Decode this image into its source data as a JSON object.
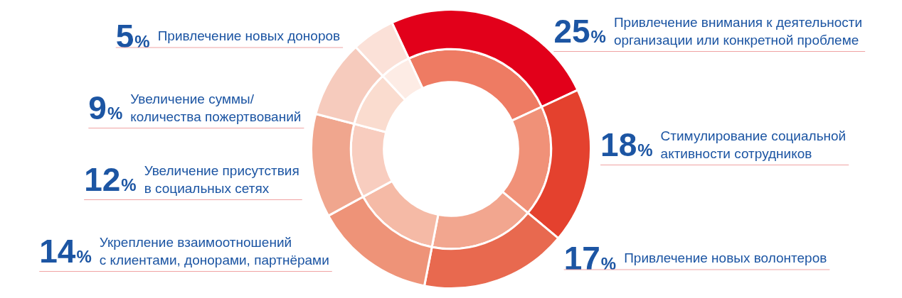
{
  "chart_data": {
    "type": "donut",
    "categories": [
      "Привлечение внимания к деятельности\nорганизации или конкретной проблеме",
      "Стимулирование социальной\nактивности сотрудников",
      "Привлечение новых волонтеров",
      "Укрепление взаимоотношений\nс клиентами, донорами, партнёрами",
      "Увеличение присутствия\nв социальных сетях",
      "Увеличение суммы/\nколичества пожертвований",
      "Привлечение новых доноров"
    ],
    "series": [
      {
        "values": [
          25,
          18,
          17,
          14,
          12,
          9,
          5
        ],
        "colors": [
          "#e2001a",
          "#e4412e",
          "#e8694f",
          "#ee9378",
          "#f0a68e",
          "#f6cbbd",
          "#fbe1d8"
        ],
        "value_labels": [
          "25%",
          "18%",
          "17%",
          "14%",
          "12%",
          "9%",
          "5%"
        ]
      },
      {
        "values": [
          25,
          18,
          17,
          14,
          12,
          9,
          5
        ],
        "colors": [
          "#ee7b63",
          "#f09178",
          "#f2a68f",
          "#f5baa6",
          "#f8cdbf",
          "#fadccf",
          "#fdece5"
        ]
      }
    ],
    "legend": false
  }
}
